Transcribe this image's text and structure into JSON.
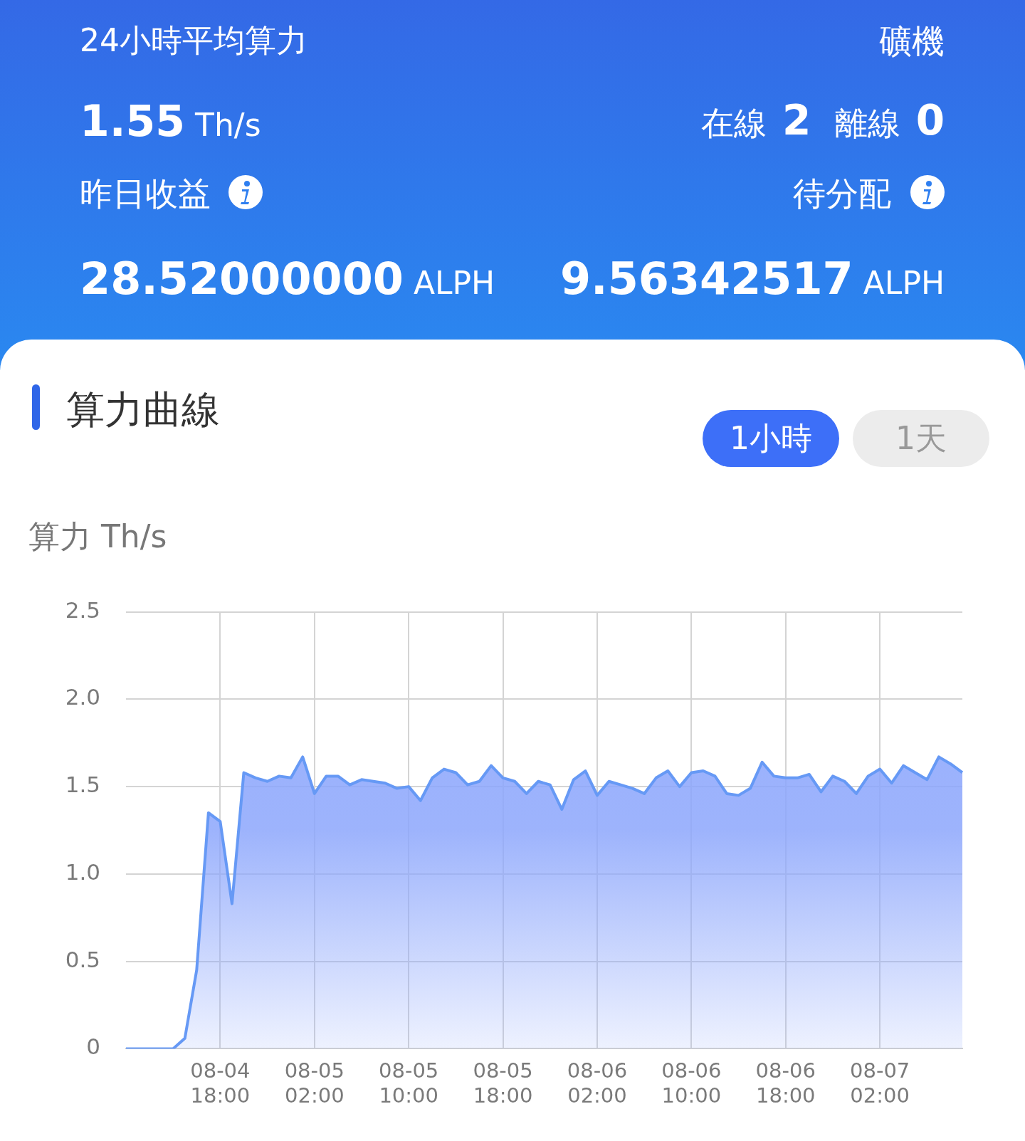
{
  "chart_data": {
    "type": "area",
    "title": "算力曲線",
    "ylabel": "算力 Th/s",
    "annotations": [
      "24小時平均算力",
      "1.55 Th/s",
      "礦機",
      "在線 2",
      "離線 0",
      "昨日收益",
      "待分配",
      "28.52000000 ALPH",
      "9.56342517 ALPH",
      "1小時",
      "1天"
    ],
    "categories": [
      null,
      null,
      null,
      null,
      null,
      null,
      null,
      null,
      "08-04 18:00",
      null,
      null,
      null,
      null,
      null,
      null,
      null,
      "08-05 02:00",
      null,
      null,
      null,
      null,
      null,
      null,
      null,
      "08-05 10:00",
      null,
      null,
      null,
      null,
      null,
      null,
      null,
      "08-05 18:00",
      null,
      null,
      null,
      null,
      null,
      null,
      null,
      "08-06 02:00",
      null,
      null,
      null,
      null,
      null,
      null,
      null,
      "08-06 10:00",
      null,
      null,
      null,
      null,
      null,
      null,
      null,
      "08-06 18:00",
      null,
      null,
      null,
      null,
      null,
      null,
      null,
      "08-07 02:00",
      null,
      null,
      null,
      null,
      null,
      null,
      null
    ],
    "series": [
      {
        "color": "#6699f5",
        "values": [
          0,
          0,
          0,
          0,
          0,
          0.06,
          0.45,
          1.35,
          1.3,
          0.83,
          1.58,
          1.55,
          1.53,
          1.56,
          1.55,
          1.67,
          1.46,
          1.56,
          1.56,
          1.51,
          1.54,
          1.53,
          1.52,
          1.49,
          1.5,
          1.42,
          1.55,
          1.6,
          1.58,
          1.51,
          1.53,
          1.62,
          1.55,
          1.53,
          1.46,
          1.53,
          1.51,
          1.37,
          1.54,
          1.59,
          1.45,
          1.53,
          1.51,
          1.49,
          1.46,
          1.55,
          1.59,
          1.5,
          1.58,
          1.59,
          1.56,
          1.46,
          1.45,
          1.49,
          1.64,
          1.56,
          1.55,
          1.55,
          1.57,
          1.47,
          1.56,
          1.53,
          1.46,
          1.56,
          1.6,
          1.52,
          1.62,
          1.58,
          1.54,
          1.67,
          1.63,
          1.58
        ]
      }
    ],
    "ylim": [
      0,
      2.5
    ],
    "yticks": [
      0,
      {
        "value": 0.5,
        "label": "0.5"
      },
      {
        "value": 1,
        "label": "1.0"
      },
      1.5,
      {
        "value": 2,
        "label": "2.0"
      },
      2.5
    ],
    "grid": true,
    "legend": false,
    "marker": "none",
    "line_style": "solid"
  }
}
